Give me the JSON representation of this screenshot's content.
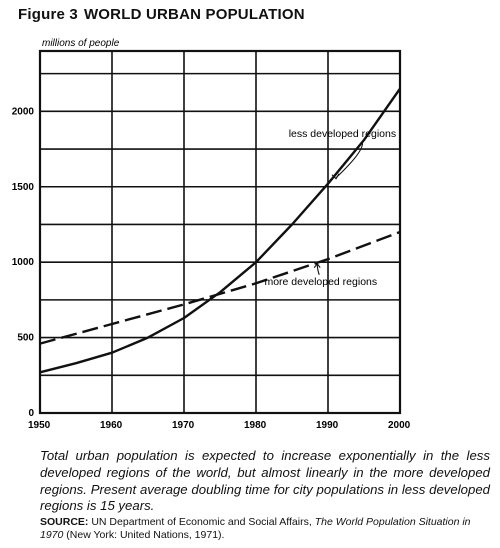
{
  "figure": {
    "number": "Figure 3",
    "title": "WORLD URBAN POPULATION"
  },
  "chart_data": {
    "type": "line",
    "title": "WORLD URBAN POPULATION",
    "ylabel": "millions of people",
    "xlabel": "",
    "xlim": [
      1950,
      2000
    ],
    "ylim": [
      0,
      2400
    ],
    "x_ticks": [
      1950,
      1960,
      1970,
      1980,
      1990,
      2000
    ],
    "y_ticks": [
      0,
      500,
      1000,
      1500,
      2000
    ],
    "grid": true,
    "legend": "none",
    "series": [
      {
        "name": "less developed regions",
        "style": "solid",
        "x": [
          1950,
          1955,
          1960,
          1965,
          1970,
          1975,
          1980,
          1985,
          1990,
          1995,
          2000
        ],
        "y": [
          270,
          330,
          400,
          500,
          630,
          800,
          1000,
          1250,
          1520,
          1810,
          2150
        ]
      },
      {
        "name": "more developed regions",
        "style": "dashed",
        "x": [
          1950,
          1960,
          1970,
          1980,
          1990,
          2000
        ],
        "y": [
          460,
          590,
          720,
          860,
          1020,
          1200
        ]
      }
    ],
    "annotations": [
      {
        "text": "less developed regions",
        "series": 0,
        "x": 1992,
        "y": 1830
      },
      {
        "text": "more developed regions",
        "series": 1,
        "x": 1989,
        "y": 850
      }
    ]
  },
  "caption": "Total urban population is expected to increase exponentially in the less developed regions of the world, but almost linearly in the more developed regions. Present average doubling time for city populations in less developed regions is 15 years.",
  "source": {
    "label": "SOURCE:",
    "prefix": "UN Department of Economic and Social Affairs,",
    "work": "The World Population Situation in 1970",
    "suffix": "(New York: United Nations, 1971)."
  }
}
